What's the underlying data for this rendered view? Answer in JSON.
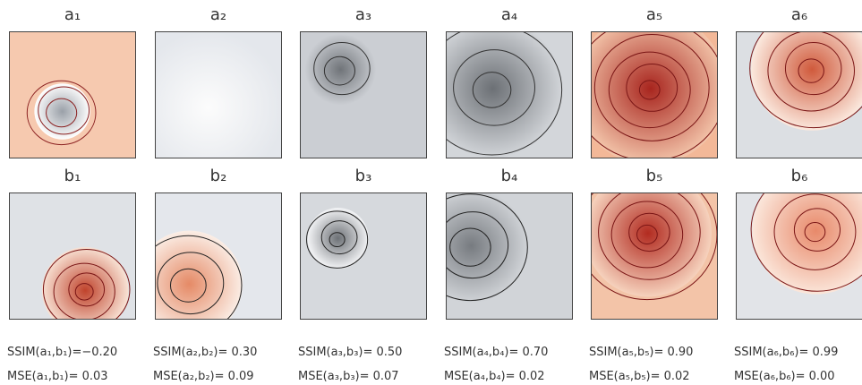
{
  "top_row": [
    "a₁",
    "a₂",
    "a₃",
    "a₄",
    "a₅",
    "a₆"
  ],
  "bottom_row": [
    "b₁",
    "b₂",
    "b₃",
    "b₄",
    "b₅",
    "b₆"
  ],
  "metrics": [
    {
      "ssim": "SSIM(a₁,b₁)=−0.20",
      "mse": "MSE(a₁,b₁)= 0.03"
    },
    {
      "ssim": "SSIM(a₂,b₂)= 0.30",
      "mse": "MSE(a₂,b₂)= 0.09"
    },
    {
      "ssim": "SSIM(a₃,b₃)= 0.50",
      "mse": "MSE(a₃,b₃)= 0.07"
    },
    {
      "ssim": "SSIM(a₄,b₄)= 0.70",
      "mse": "MSE(a₄,b₄)= 0.02"
    },
    {
      "ssim": "SSIM(a₅,b₅)= 0.90",
      "mse": "MSE(a₅,b₅)= 0.02"
    },
    {
      "ssim": "SSIM(a₆,b₆)= 0.99",
      "mse": "MSE(a₆,b₆)= 0.00"
    }
  ]
}
